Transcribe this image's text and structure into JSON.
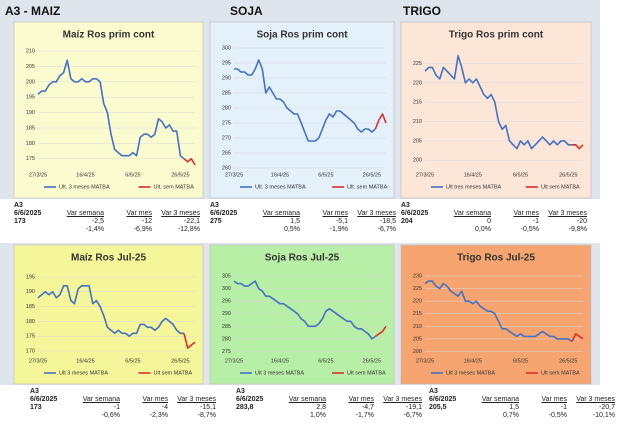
{
  "headers": [
    "A3 - MAIZ",
    "SOJA",
    "TRIGO"
  ],
  "chart_data": [
    {
      "type": "line",
      "title": "Maíz Ros prim cont",
      "categories": [
        "27/3/25",
        null,
        null,
        null,
        null,
        null,
        null,
        null,
        null,
        null,
        null,
        null,
        null,
        "16/4/25",
        null,
        null,
        null,
        null,
        null,
        null,
        null,
        null,
        null,
        null,
        null,
        null,
        "6/5/25",
        null,
        null,
        null,
        null,
        null,
        null,
        null,
        null,
        null,
        null,
        null,
        null,
        "26/5/25",
        null,
        null,
        null,
        null
      ],
      "series": [
        {
          "name": "Ult. 3 meses MATBA",
          "color": "#4472c4",
          "values": [
            196,
            197,
            197,
            199,
            200,
            200,
            202,
            203,
            207,
            201,
            200,
            200,
            201,
            200,
            200,
            201,
            201,
            200,
            193,
            190,
            183,
            178,
            177,
            176,
            176,
            176,
            177,
            176,
            182,
            183,
            183,
            182,
            183,
            188,
            187,
            185,
            186,
            184,
            184,
            176,
            175,
            null,
            null,
            null
          ]
        },
        {
          "name": "Ult. sem MATBA",
          "color": "#d9302c",
          "values": [
            null,
            null,
            null,
            null,
            null,
            null,
            null,
            null,
            null,
            null,
            null,
            null,
            null,
            null,
            null,
            null,
            null,
            null,
            null,
            null,
            null,
            null,
            null,
            null,
            null,
            null,
            null,
            null,
            null,
            null,
            null,
            null,
            null,
            null,
            null,
            null,
            null,
            null,
            null,
            null,
            175,
            174,
            175,
            173
          ]
        }
      ],
      "ylim": [
        172,
        211
      ],
      "yticks": [
        175,
        180,
        185,
        190,
        195,
        200,
        205,
        210
      ]
    },
    {
      "type": "line",
      "title": "Soja Ros prim cont",
      "categories": [
        "27/3/25",
        null,
        null,
        null,
        null,
        null,
        null,
        null,
        null,
        null,
        null,
        null,
        null,
        "16/4/25",
        null,
        null,
        null,
        null,
        null,
        null,
        null,
        null,
        null,
        null,
        null,
        null,
        "6/5/25",
        null,
        null,
        null,
        null,
        null,
        null,
        null,
        null,
        null,
        null,
        null,
        null,
        "26/5/25",
        null,
        null,
        null,
        null
      ],
      "series": [
        {
          "name": "Ult. 3 meses MATBA",
          "color": "#4472c4",
          "values": [
            293,
            293,
            292,
            292,
            291,
            291,
            293,
            296,
            293,
            285,
            287,
            285,
            283,
            283,
            282,
            280,
            279,
            278,
            278,
            275,
            272,
            269,
            269,
            269,
            270,
            273,
            276,
            278,
            277,
            279,
            279,
            278,
            277,
            276,
            275,
            273,
            272,
            273,
            273,
            272,
            273,
            null,
            null,
            null
          ]
        },
        {
          "name": "Ult. sem MATBA",
          "color": "#d9302c",
          "values": [
            null,
            null,
            null,
            null,
            null,
            null,
            null,
            null,
            null,
            null,
            null,
            null,
            null,
            null,
            null,
            null,
            null,
            null,
            null,
            null,
            null,
            null,
            null,
            null,
            null,
            null,
            null,
            null,
            null,
            null,
            null,
            null,
            null,
            null,
            null,
            null,
            null,
            null,
            null,
            null,
            273,
            276,
            278,
            275
          ]
        }
      ],
      "ylim": [
        260,
        300
      ],
      "yticks": [
        260,
        265,
        270,
        275,
        280,
        285,
        290,
        295,
        300
      ]
    },
    {
      "type": "line",
      "title": "Trigo Ros prim cont",
      "categories": [
        "27/3/25",
        null,
        null,
        null,
        null,
        null,
        null,
        null,
        null,
        null,
        null,
        null,
        null,
        "16/4/25",
        null,
        null,
        null,
        null,
        null,
        null,
        null,
        null,
        null,
        null,
        null,
        null,
        "6/5/25",
        null,
        null,
        null,
        null,
        null,
        null,
        null,
        null,
        null,
        null,
        null,
        null,
        "26/5/25",
        null,
        null,
        null,
        null
      ],
      "series": [
        {
          "name": "Ult tres meses MATBA",
          "color": "#4472c4",
          "values": [
            223,
            224,
            224,
            222,
            221,
            224,
            223,
            222,
            221,
            227,
            224,
            220,
            221,
            220,
            221,
            219,
            217,
            216,
            217,
            215,
            210,
            208,
            209,
            205,
            204,
            203,
            205,
            204,
            205,
            203,
            204,
            205,
            206,
            205,
            204,
            205,
            204,
            205,
            205,
            204,
            204,
            null,
            null,
            null
          ]
        },
        {
          "name": "Ult sem MATBA",
          "color": "#d9302c",
          "values": [
            null,
            null,
            null,
            null,
            null,
            null,
            null,
            null,
            null,
            null,
            null,
            null,
            null,
            null,
            null,
            null,
            null,
            null,
            null,
            null,
            null,
            null,
            null,
            null,
            null,
            null,
            null,
            null,
            null,
            null,
            null,
            null,
            null,
            null,
            null,
            null,
            null,
            null,
            null,
            null,
            204,
            204,
            203,
            204
          ]
        }
      ],
      "ylim": [
        198,
        229
      ],
      "yticks": [
        200,
        205,
        210,
        215,
        220,
        225
      ]
    },
    {
      "type": "line",
      "title": "Maíz Ros Jul-25",
      "categories": [
        "27/3/25",
        null,
        null,
        null,
        null,
        null,
        null,
        null,
        null,
        null,
        null,
        null,
        null,
        "16/4/25",
        null,
        null,
        null,
        null,
        null,
        null,
        null,
        null,
        null,
        null,
        null,
        null,
        "6/5/25",
        null,
        null,
        null,
        null,
        null,
        null,
        null,
        null,
        null,
        null,
        null,
        null,
        "26/5/25",
        null,
        null,
        null,
        null
      ],
      "series": [
        {
          "name": "Ult 3 meses MATBA",
          "color": "#4472c4",
          "values": [
            188,
            189,
            190,
            189,
            190,
            188,
            189,
            192,
            192,
            187,
            186,
            191,
            192,
            192,
            192,
            186,
            187,
            185,
            182,
            178,
            177,
            176,
            177,
            176,
            176,
            175,
            176,
            176,
            179,
            179,
            178,
            178,
            177,
            178,
            180,
            181,
            180,
            179,
            177,
            176,
            176,
            null,
            null,
            null
          ]
        },
        {
          "name": "Ult sem MATBA",
          "color": "#d9302c",
          "values": [
            null,
            null,
            null,
            null,
            null,
            null,
            null,
            null,
            null,
            null,
            null,
            null,
            null,
            null,
            null,
            null,
            null,
            null,
            null,
            null,
            null,
            null,
            null,
            null,
            null,
            null,
            null,
            null,
            null,
            null,
            null,
            null,
            null,
            null,
            null,
            null,
            null,
            null,
            null,
            null,
            176,
            171,
            172,
            173
          ]
        }
      ],
      "ylim": [
        169,
        197
      ],
      "yticks": [
        170,
        175,
        180,
        185,
        190,
        195
      ]
    },
    {
      "type": "line",
      "title": "Soja Ros Jul-25",
      "categories": [
        "27/3/25",
        null,
        null,
        null,
        null,
        null,
        null,
        null,
        null,
        null,
        null,
        null,
        null,
        "16/4/25",
        null,
        null,
        null,
        null,
        null,
        null,
        null,
        null,
        null,
        null,
        null,
        null,
        "6/5/25",
        null,
        null,
        null,
        null,
        null,
        null,
        null,
        null,
        null,
        null,
        null,
        null,
        "26/5/25",
        null,
        null,
        null,
        null
      ],
      "series": [
        {
          "name": "Ult 3 meses MATBA",
          "color": "#4472c4",
          "values": [
            303,
            302,
            302,
            301,
            301,
            302,
            303,
            300,
            299,
            297,
            297,
            296,
            295,
            294,
            294,
            293,
            292,
            291,
            290,
            288,
            287,
            285,
            285,
            285,
            286,
            288,
            291,
            292,
            291,
            290,
            289,
            288,
            287,
            287,
            285,
            284,
            284,
            283,
            282,
            280,
            281,
            null,
            null,
            null
          ]
        },
        {
          "name": "Ult sem MATBA",
          "color": "#d9302c",
          "values": [
            null,
            null,
            null,
            null,
            null,
            null,
            null,
            null,
            null,
            null,
            null,
            null,
            null,
            null,
            null,
            null,
            null,
            null,
            null,
            null,
            null,
            null,
            null,
            null,
            null,
            null,
            null,
            null,
            null,
            null,
            null,
            null,
            null,
            null,
            null,
            null,
            null,
            null,
            null,
            null,
            281,
            282,
            283,
            285
          ]
        }
      ],
      "ylim": [
        274,
        307
      ],
      "yticks": [
        275,
        280,
        285,
        290,
        295,
        300,
        305
      ]
    },
    {
      "type": "line",
      "title": "Trigo Ros Jul-25",
      "categories": [
        "27/3/25",
        null,
        null,
        null,
        null,
        null,
        null,
        null,
        null,
        null,
        null,
        null,
        null,
        "16/4/25",
        null,
        null,
        null,
        null,
        null,
        null,
        null,
        null,
        null,
        null,
        null,
        null,
        "6/5/25",
        null,
        null,
        null,
        null,
        null,
        null,
        null,
        null,
        null,
        null,
        null,
        null,
        "26/5/25",
        null,
        null,
        null,
        null
      ],
      "series": [
        {
          "name": "Ult 3 meses MATBA",
          "color": "#4472c4",
          "values": [
            227,
            228,
            228,
            226,
            225,
            227,
            226,
            224,
            223,
            222,
            224,
            220,
            220,
            219,
            220,
            218,
            217,
            216,
            216,
            215,
            212,
            209,
            209,
            208,
            207,
            206,
            207,
            206,
            206,
            206,
            206,
            207,
            208,
            207,
            206,
            206,
            205,
            205,
            205,
            205,
            204,
            null,
            null,
            null
          ]
        },
        {
          "name": "Ult sem MATBA",
          "color": "#d9302c",
          "values": [
            null,
            null,
            null,
            null,
            null,
            null,
            null,
            null,
            null,
            null,
            null,
            null,
            null,
            null,
            null,
            null,
            null,
            null,
            null,
            null,
            null,
            null,
            null,
            null,
            null,
            null,
            null,
            null,
            null,
            null,
            null,
            null,
            null,
            null,
            null,
            null,
            null,
            null,
            null,
            null,
            204,
            207,
            206,
            205
          ]
        }
      ],
      "ylim": [
        199,
        232
      ],
      "yticks": [
        200,
        205,
        210,
        215,
        220,
        225,
        230
      ]
    }
  ],
  "stats": [
    {
      "label": "A3",
      "date": "6/6/2025",
      "value": "173",
      "columns": [
        {
          "name": "Var semana",
          "change": "-2,5",
          "pct": "-1,4%"
        },
        {
          "name": "Var mes",
          "change": "-12",
          "pct": "-6,9%"
        },
        {
          "name": "Var 3 meses",
          "change": "-22,1",
          "pct": "-12,8%"
        }
      ]
    },
    {
      "label": "A3",
      "date": "6/6/2025",
      "value": "275",
      "columns": [
        {
          "name": "Var semana",
          "change": "1,5",
          "pct": "0,5%"
        },
        {
          "name": "Var mes",
          "change": "-5,1",
          "pct": "-1,9%"
        },
        {
          "name": "Var 3 meses",
          "change": "-18,5",
          "pct": "-6,7%"
        }
      ]
    },
    {
      "label": "A3",
      "date": "6/6/2025",
      "value": "204",
      "columns": [
        {
          "name": "Var semana",
          "change": "0",
          "pct": "0,0%"
        },
        {
          "name": "Var mes",
          "change": "-1",
          "pct": "-0,5%"
        },
        {
          "name": "Var 3 meses",
          "change": "-20",
          "pct": "-9,8%"
        }
      ]
    },
    {
      "label": "A3",
      "date": "6/6/2025",
      "value": "173",
      "columns": [
        {
          "name": "Var semana",
          "change": "-1",
          "pct": "-0,6%"
        },
        {
          "name": "Var mes",
          "change": "-4",
          "pct": "-2,3%"
        },
        {
          "name": "Var 3 meses",
          "change": "-15,1",
          "pct": "-8,7%"
        }
      ]
    },
    {
      "label": "A3",
      "date": "6/6/2025",
      "value": "283,8",
      "columns": [
        {
          "name": "Var semana",
          "change": "2,8",
          "pct": "1,0%"
        },
        {
          "name": "Var mes",
          "change": "-4,7",
          "pct": "-1,7%"
        },
        {
          "name": "Var 3 meses",
          "change": "-19,1",
          "pct": "-6,7%"
        }
      ]
    },
    {
      "label": "A3",
      "date": "6/6/2025",
      "value": "205,5",
      "columns": [
        {
          "name": "Var semana",
          "change": "1,5",
          "pct": "0,7%"
        },
        {
          "name": "Var mes",
          "change": "-1",
          "pct": "-0,5%"
        },
        {
          "name": "Var 3 meses",
          "change": "-20,7",
          "pct": "-10,1%"
        }
      ]
    }
  ]
}
